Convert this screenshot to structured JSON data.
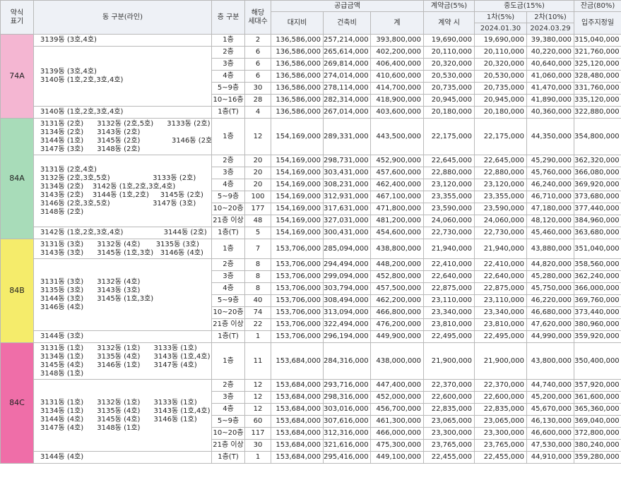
{
  "header": {
    "type_abbr": "약식\n표기",
    "dong": "동 구분(라인)",
    "floor": "층 구분",
    "households": "해당\n세대수",
    "supply": "공급금액",
    "land": "대지비",
    "building": "건축비",
    "total": "계",
    "contract_group": "계약금(5%)",
    "contract": "계약 시",
    "middle_group": "중도금(15%)",
    "mid1": "1차(5%)",
    "mid1_date": "2024.01.30",
    "mid2": "2차(10%)",
    "mid2_date": "2024.03.29",
    "balance_group": "잔금(80%)",
    "balance": "입주지정일"
  },
  "type_colors": {
    "74A": "#f4b6d2",
    "84A": "#a8dcb9",
    "84B": "#f5ec6b",
    "84C": "#ef6ea8"
  },
  "types": [
    {
      "type": "74A",
      "groups": [
        {
          "dong": "3139동 (3호,4호)",
          "rows": [
            [
              "1층",
              "2",
              "136,586,000",
              "257,214,000",
              "393,800,000",
              "19,690,000",
              "19,690,000",
              "39,380,000",
              "315,040,000"
            ]
          ]
        },
        {
          "dong": "3139동 (3호,4호)\n3140동 (1호,2호,3호,4호)",
          "rows": [
            [
              "2층",
              "6",
              "136,586,000",
              "265,614,000",
              "402,200,000",
              "20,110,000",
              "20,110,000",
              "40,220,000",
              "321,760,000"
            ],
            [
              "3층",
              "6",
              "136,586,000",
              "269,814,000",
              "406,400,000",
              "20,320,000",
              "20,320,000",
              "40,640,000",
              "325,120,000"
            ],
            [
              "4층",
              "6",
              "136,586,000",
              "274,014,000",
              "410,600,000",
              "20,530,000",
              "20,530,000",
              "41,060,000",
              "328,480,000"
            ],
            [
              "5~9층",
              "30",
              "136,586,000",
              "278,114,000",
              "414,700,000",
              "20,735,000",
              "20,735,000",
              "41,470,000",
              "331,760,000"
            ],
            [
              "10~16층",
              "28",
              "136,586,000",
              "282,314,000",
              "418,900,000",
              "20,945,000",
              "20,945,000",
              "41,890,000",
              "335,120,000"
            ]
          ]
        },
        {
          "dong": "3140동 (1호,2호,3호,4호)",
          "rows": [
            [
              "1층(T)",
              "4",
              "136,586,000",
              "267,014,000",
              "403,600,000",
              "20,180,000",
              "20,180,000",
              "40,360,000",
              "322,880,000"
            ]
          ]
        }
      ]
    },
    {
      "type": "84A",
      "groups": [
        {
          "dong": "3131동 (2호)      3132동 (2호,5호)      3133동 (2호)\n3134동 (2호)      3143동 (2호)\n3144동 (1호)      3145동 (2호)              3146동 (2호,5호)\n3147동 (3호)      3148동 (2호)",
          "rows": [
            [
              "1층",
              "12",
              "154,169,000",
              "289,331,000",
              "443,500,000",
              "22,175,000",
              "22,175,000",
              "44,350,000",
              "354,800,000"
            ]
          ]
        },
        {
          "dong": "3131동 (2호,4호)\n3132동 (2호,3호,5호)                   3133동 (2호)\n3134동 (2호)    3142동 (1호,2호,3호,4호)\n3143동 (2호)    3144동 (1호,2호)     3145동 (2호)\n3146동 (2호,3호,5호)                   3147동 (3호)\n3148동 (2호)",
          "rows": [
            [
              "2층",
              "20",
              "154,169,000",
              "298,731,000",
              "452,900,000",
              "22,645,000",
              "22,645,000",
              "45,290,000",
              "362,320,000"
            ],
            [
              "3층",
              "20",
              "154,169,000",
              "303,431,000",
              "457,600,000",
              "22,880,000",
              "22,880,000",
              "45,760,000",
              "366,080,000"
            ],
            [
              "4층",
              "20",
              "154,169,000",
              "308,231,000",
              "462,400,000",
              "23,120,000",
              "23,120,000",
              "46,240,000",
              "369,920,000"
            ],
            [
              "5~9층",
              "100",
              "154,169,000",
              "312,931,000",
              "467,100,000",
              "23,355,000",
              "23,355,000",
              "46,710,000",
              "373,680,000"
            ],
            [
              "10~20층",
              "177",
              "154,169,000",
              "317,631,000",
              "471,800,000",
              "23,590,000",
              "23,590,000",
              "47,180,000",
              "377,440,000"
            ],
            [
              "21층 이상",
              "48",
              "154,169,000",
              "327,031,000",
              "481,200,000",
              "24,060,000",
              "24,060,000",
              "48,120,000",
              "384,960,000"
            ]
          ]
        },
        {
          "dong": "3142동 (1호,2호,3호,4호)                  3144동 (2호)",
          "rows": [
            [
              "1층(T)",
              "5",
              "154,169,000",
              "300,431,000",
              "454,600,000",
              "22,730,000",
              "22,730,000",
              "45,460,000",
              "363,680,000"
            ]
          ]
        }
      ]
    },
    {
      "type": "84B",
      "groups": [
        {
          "dong": "3131동 (3호)      3132동 (4호)       3135동 (3호)\n3143동 (3호)      3145동 (1호,3호)   3146동 (4호)",
          "rows": [
            [
              "1층",
              "7",
              "153,706,000",
              "285,094,000",
              "438,800,000",
              "21,940,000",
              "21,940,000",
              "43,880,000",
              "351,040,000"
            ]
          ]
        },
        {
          "dong": "3131동 (3호)      3132동 (4호)\n3135동 (3호)      3143동 (3호)\n3144동 (3호)      3145동 (1호,3호)\n3146동 (4호)",
          "rows": [
            [
              "2층",
              "8",
              "153,706,000",
              "294,494,000",
              "448,200,000",
              "22,410,000",
              "22,410,000",
              "44,820,000",
              "358,560,000"
            ],
            [
              "3층",
              "8",
              "153,706,000",
              "299,094,000",
              "452,800,000",
              "22,640,000",
              "22,640,000",
              "45,280,000",
              "362,240,000"
            ],
            [
              "4층",
              "8",
              "153,706,000",
              "303,794,000",
              "457,500,000",
              "22,875,000",
              "22,875,000",
              "45,750,000",
              "366,000,000"
            ],
            [
              "5~9층",
              "40",
              "153,706,000",
              "308,494,000",
              "462,200,000",
              "23,110,000",
              "23,110,000",
              "46,220,000",
              "369,760,000"
            ],
            [
              "10~20층",
              "74",
              "153,706,000",
              "313,094,000",
              "466,800,000",
              "23,340,000",
              "23,340,000",
              "46,680,000",
              "373,440,000"
            ],
            [
              "21층 이상",
              "22",
              "153,706,000",
              "322,494,000",
              "476,200,000",
              "23,810,000",
              "23,810,000",
              "47,620,000",
              "380,960,000"
            ]
          ]
        },
        {
          "dong": "3144동 (3호)",
          "rows": [
            [
              "1층(T)",
              "1",
              "153,706,000",
              "296,194,000",
              "449,900,000",
              "22,495,000",
              "22,495,000",
              "44,990,000",
              "359,920,000"
            ]
          ]
        }
      ]
    },
    {
      "type": "84C",
      "groups": [
        {
          "dong": "3131동 (1호)      3132동 (1호)      3133동 (1호)\n3134동 (1호)      3135동 (4호)      3143동 (1호,4호)\n3145동 (4호)      3146동 (1호)      3147동 (4호)\n3148동 (1호)",
          "rows": [
            [
              "1층",
              "11",
              "153,684,000",
              "284,316,000",
              "438,000,000",
              "21,900,000",
              "21,900,000",
              "43,800,000",
              "350,400,000"
            ]
          ]
        },
        {
          "dong": "3131동 (1호)      3132동 (1호)      3133동 (1호)\n3134동 (1호)      3135동 (4호)      3143동 (1호,4호)\n3144동 (4호)      3145동 (4호)      3146동 (1호)\n3147동 (4호)      3148동 (1호)",
          "rows": [
            [
              "2층",
              "12",
              "153,684,000",
              "293,716,000",
              "447,400,000",
              "22,370,000",
              "22,370,000",
              "44,740,000",
              "357,920,000"
            ],
            [
              "3층",
              "12",
              "153,684,000",
              "298,316,000",
              "452,000,000",
              "22,600,000",
              "22,600,000",
              "45,200,000",
              "361,600,000"
            ],
            [
              "4층",
              "12",
              "153,684,000",
              "303,016,000",
              "456,700,000",
              "22,835,000",
              "22,835,000",
              "45,670,000",
              "365,360,000"
            ],
            [
              "5~9층",
              "60",
              "153,684,000",
              "307,616,000",
              "461,300,000",
              "23,065,000",
              "23,065,000",
              "46,130,000",
              "369,040,000"
            ],
            [
              "10~20층",
              "117",
              "153,684,000",
              "312,316,000",
              "466,000,000",
              "23,300,000",
              "23,300,000",
              "46,600,000",
              "372,800,000"
            ],
            [
              "21층 이상",
              "30",
              "153,684,000",
              "321,616,000",
              "475,300,000",
              "23,765,000",
              "23,765,000",
              "47,530,000",
              "380,240,000"
            ]
          ]
        },
        {
          "dong": "3144동 (4호)",
          "rows": [
            [
              "1층(T)",
              "1",
              "153,684,000",
              "295,416,000",
              "449,100,000",
              "22,455,000",
              "22,455,000",
              "44,910,000",
              "359,280,000"
            ]
          ]
        }
      ]
    }
  ]
}
